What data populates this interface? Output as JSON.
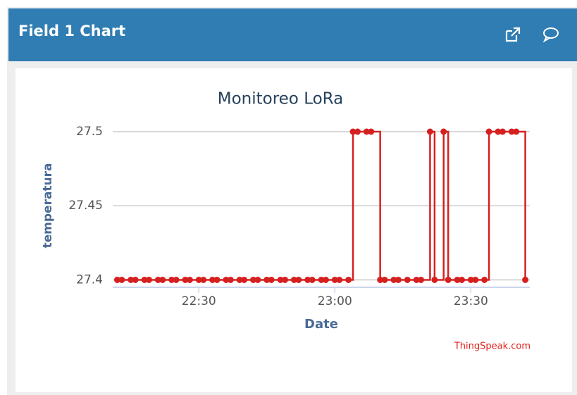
{
  "header": {
    "title": "Field 1 Chart"
  },
  "chart_data": {
    "type": "line",
    "step": true,
    "title": "Monitoreo LoRa",
    "xlabel": "Date",
    "ylabel": "temperatura",
    "credit": "ThingSpeak.com",
    "x": [
      "22:12",
      "22:13",
      "22:15",
      "22:16",
      "22:18",
      "22:19",
      "22:21",
      "22:22",
      "22:24",
      "22:25",
      "22:27",
      "22:28",
      "22:30",
      "22:31",
      "22:33",
      "22:34",
      "22:36",
      "22:37",
      "22:39",
      "22:40",
      "22:42",
      "22:43",
      "22:45",
      "22:46",
      "22:48",
      "22:49",
      "22:51",
      "22:52",
      "22:54",
      "22:55",
      "22:57",
      "22:58",
      "23:00",
      "23:01",
      "23:03",
      "23:04",
      "23:05",
      "23:07",
      "23:08",
      "23:10",
      "23:11",
      "23:13",
      "23:14",
      "23:16",
      "23:18",
      "23:19",
      "23:21",
      "23:22",
      "23:24",
      "23:25",
      "23:27",
      "23:28",
      "23:30",
      "23:31",
      "23:33",
      "23:34",
      "23:36",
      "23:37",
      "23:39",
      "23:40",
      "23:42"
    ],
    "series": [
      {
        "name": "Field 1",
        "color": "#d62020",
        "values": [
          27.4,
          27.4,
          27.4,
          27.4,
          27.4,
          27.4,
          27.4,
          27.4,
          27.4,
          27.4,
          27.4,
          27.4,
          27.4,
          27.4,
          27.4,
          27.4,
          27.4,
          27.4,
          27.4,
          27.4,
          27.4,
          27.4,
          27.4,
          27.4,
          27.4,
          27.4,
          27.4,
          27.4,
          27.4,
          27.4,
          27.4,
          27.4,
          27.4,
          27.4,
          27.4,
          27.5,
          27.5,
          27.5,
          27.5,
          27.4,
          27.4,
          27.4,
          27.4,
          27.4,
          27.4,
          27.4,
          27.5,
          27.4,
          27.5,
          27.4,
          27.4,
          27.4,
          27.4,
          27.4,
          27.4,
          27.5,
          27.5,
          27.5,
          27.5,
          27.5,
          27.4
        ]
      }
    ],
    "xlim": [
      "22:11",
      "23:43"
    ],
    "xticks": [
      "22:30",
      "23:00",
      "23:30"
    ],
    "ylim": [
      27.395,
      27.5
    ],
    "yticks": [
      27.4,
      27.45,
      27.5
    ],
    "grid": true
  }
}
